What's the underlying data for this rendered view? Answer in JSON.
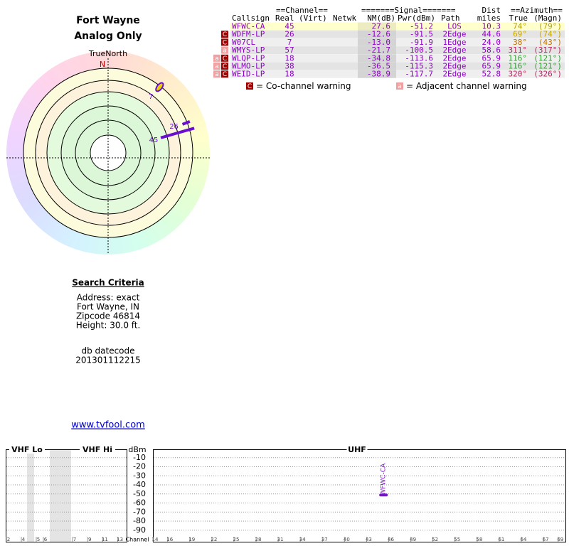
{
  "header": {
    "title": "Fort Wayne",
    "subtitle": "Analog Only"
  },
  "polar": {
    "north_label": "TrueNorth",
    "north": "N",
    "stations": [
      {
        "label": "7",
        "azimuth": 38,
        "color": "#e8d000"
      },
      {
        "label": "26",
        "azimuth": 69,
        "color": "#6a0fcf"
      },
      {
        "label": "45",
        "azimuth": 74,
        "color": "#6a0fcf"
      }
    ]
  },
  "criteria": {
    "title": "Search Criteria",
    "lines": [
      "Address: exact",
      "Fort Wayne, IN",
      "Zipcode 46814",
      "Height: 30.0 ft."
    ],
    "datecode_label": "db datecode",
    "datecode": "201301112215",
    "link": "www.tvfool.com"
  },
  "table": {
    "groups": [
      "==Channel==",
      "=======Signal=======",
      "Dist",
      "==Azimuth=="
    ],
    "columns": [
      "Callsign",
      "Real",
      "(Virt)",
      "Netwk",
      "NM(dB)",
      "Pwr(dBm)",
      "Path",
      "miles",
      "True",
      "(Magn)"
    ],
    "rows": [
      {
        "callsign": "WFWC-CA",
        "real": "45",
        "nm": "27.6",
        "pwr": "-51.2",
        "path": "LOS",
        "dist": "10.3",
        "true": "74°",
        "magn": "(79°)",
        "azimuth_color": "#b8a000",
        "flags": []
      },
      {
        "callsign": "WDFM-LP",
        "real": "26",
        "nm": "-12.6",
        "pwr": "-91.5",
        "path": "2Edge",
        "dist": "44.6",
        "true": "69°",
        "magn": "(74°)",
        "azimuth_color": "#c8a400",
        "flags": [
          "C"
        ]
      },
      {
        "callsign": "W07CL",
        "real": "7",
        "nm": "-13.0",
        "pwr": "-91.9",
        "path": "1Edge",
        "dist": "24.0",
        "true": "38°",
        "magn": "(43°)",
        "azimuth_color": "#c07000",
        "flags": [
          "C"
        ]
      },
      {
        "callsign": "WMYS-LP",
        "real": "57",
        "nm": "-21.7",
        "pwr": "-100.5",
        "path": "2Edge",
        "dist": "58.6",
        "true": "311°",
        "magn": "(317°)",
        "azimuth_color": "#c02060",
        "flags": [
          "a"
        ]
      },
      {
        "callsign": "WLQP-LP",
        "real": "18",
        "nm": "-34.8",
        "pwr": "-113.6",
        "path": "2Edge",
        "dist": "65.9",
        "true": "116°",
        "magn": "(121°)",
        "azimuth_color": "#30a030",
        "flags": [
          "a",
          "C"
        ]
      },
      {
        "callsign": "WLMO-LP",
        "real": "38",
        "nm": "-36.5",
        "pwr": "-115.3",
        "path": "2Edge",
        "dist": "65.9",
        "true": "116°",
        "magn": "(121°)",
        "azimuth_color": "#30a030",
        "flags": [
          "a",
          "C"
        ]
      },
      {
        "callsign": "WEID-LP",
        "real": "18",
        "nm": "-38.9",
        "pwr": "-117.7",
        "path": "2Edge",
        "dist": "52.8",
        "true": "320°",
        "magn": "(326°)",
        "azimuth_color": "#c02060",
        "flags": [
          "a",
          "C"
        ]
      }
    ],
    "legend": [
      {
        "flag": "C",
        "text": "= Co-channel warning"
      },
      {
        "flag": "a",
        "text": "= Adjacent channel warning"
      }
    ]
  },
  "spectrum": {
    "ylabel": "dBm",
    "xlabel": "Channel",
    "ylim": [
      0,
      -100
    ],
    "yticks": [
      -10,
      -20,
      -30,
      -40,
      -50,
      -60,
      -70,
      -80,
      -90
    ],
    "bands": [
      {
        "name": "VHF Lo",
        "ticks": [
          2,
          4,
          5,
          6
        ]
      },
      {
        "name": "VHF Hi",
        "ticks": [
          7,
          9,
          11,
          13
        ]
      },
      {
        "name": "UHF",
        "ticks": [
          14,
          16,
          19,
          22,
          25,
          28,
          31,
          34,
          37,
          40,
          43,
          46,
          49,
          52,
          55,
          58,
          61,
          64,
          67,
          69
        ]
      }
    ],
    "signals": [
      {
        "label": "WFWC-CA",
        "channel": 45,
        "value": -51.2,
        "color": "#7a10d0"
      }
    ]
  }
}
